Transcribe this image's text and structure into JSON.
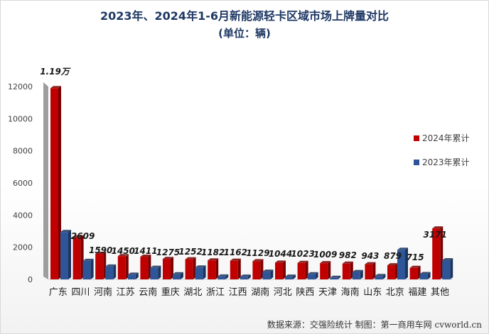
{
  "title": "2023年、2024年1-6月新能源轻卡区域市场上牌量对比",
  "subtitle": "(单位：辆)",
  "source": "数据来源：交强险统计 制图：第一商用车网 cvworld.cn",
  "colors": {
    "series_2024": "#c00000",
    "series_2024_side": "#7a0000",
    "series_2023": "#2e5597",
    "series_2023_side": "#1b355f",
    "grid": "#bfbfbf",
    "axis_wall": "#9e9e9e"
  },
  "chart_data": {
    "type": "bar",
    "categories": [
      "广东",
      "四川",
      "河南",
      "江苏",
      "云南",
      "重庆",
      "湖北",
      "浙江",
      "江西",
      "湖南",
      "河北",
      "陕西",
      "天津",
      "海南",
      "山东",
      "北京",
      "福建",
      "其他"
    ],
    "series": [
      {
        "name": "2024年累计",
        "values": [
          11900,
          2609,
          1590,
          1450,
          1411,
          1275,
          1252,
          1182,
          1162,
          1129,
          1044,
          1023,
          1009,
          982,
          943,
          879,
          715,
          3171
        ],
        "labels": [
          "1.19万",
          "2609",
          "1590",
          "1450",
          "1411",
          "1275",
          "1252",
          "1182",
          "1162",
          "1129",
          "1044",
          "1023",
          "1009",
          "982",
          "943",
          "879",
          "715",
          "3171"
        ]
      },
      {
        "name": "2023年累计",
        "values": [
          2950,
          1150,
          800,
          290,
          720,
          320,
          740,
          180,
          170,
          480,
          170,
          320,
          100,
          460,
          210,
          1840,
          330,
          1190
        ]
      }
    ],
    "yticks": [
      0,
      2000,
      4000,
      6000,
      8000,
      10000,
      12000
    ],
    "ylim": [
      0,
      12000
    ],
    "grid": false,
    "legend_position": "right"
  }
}
